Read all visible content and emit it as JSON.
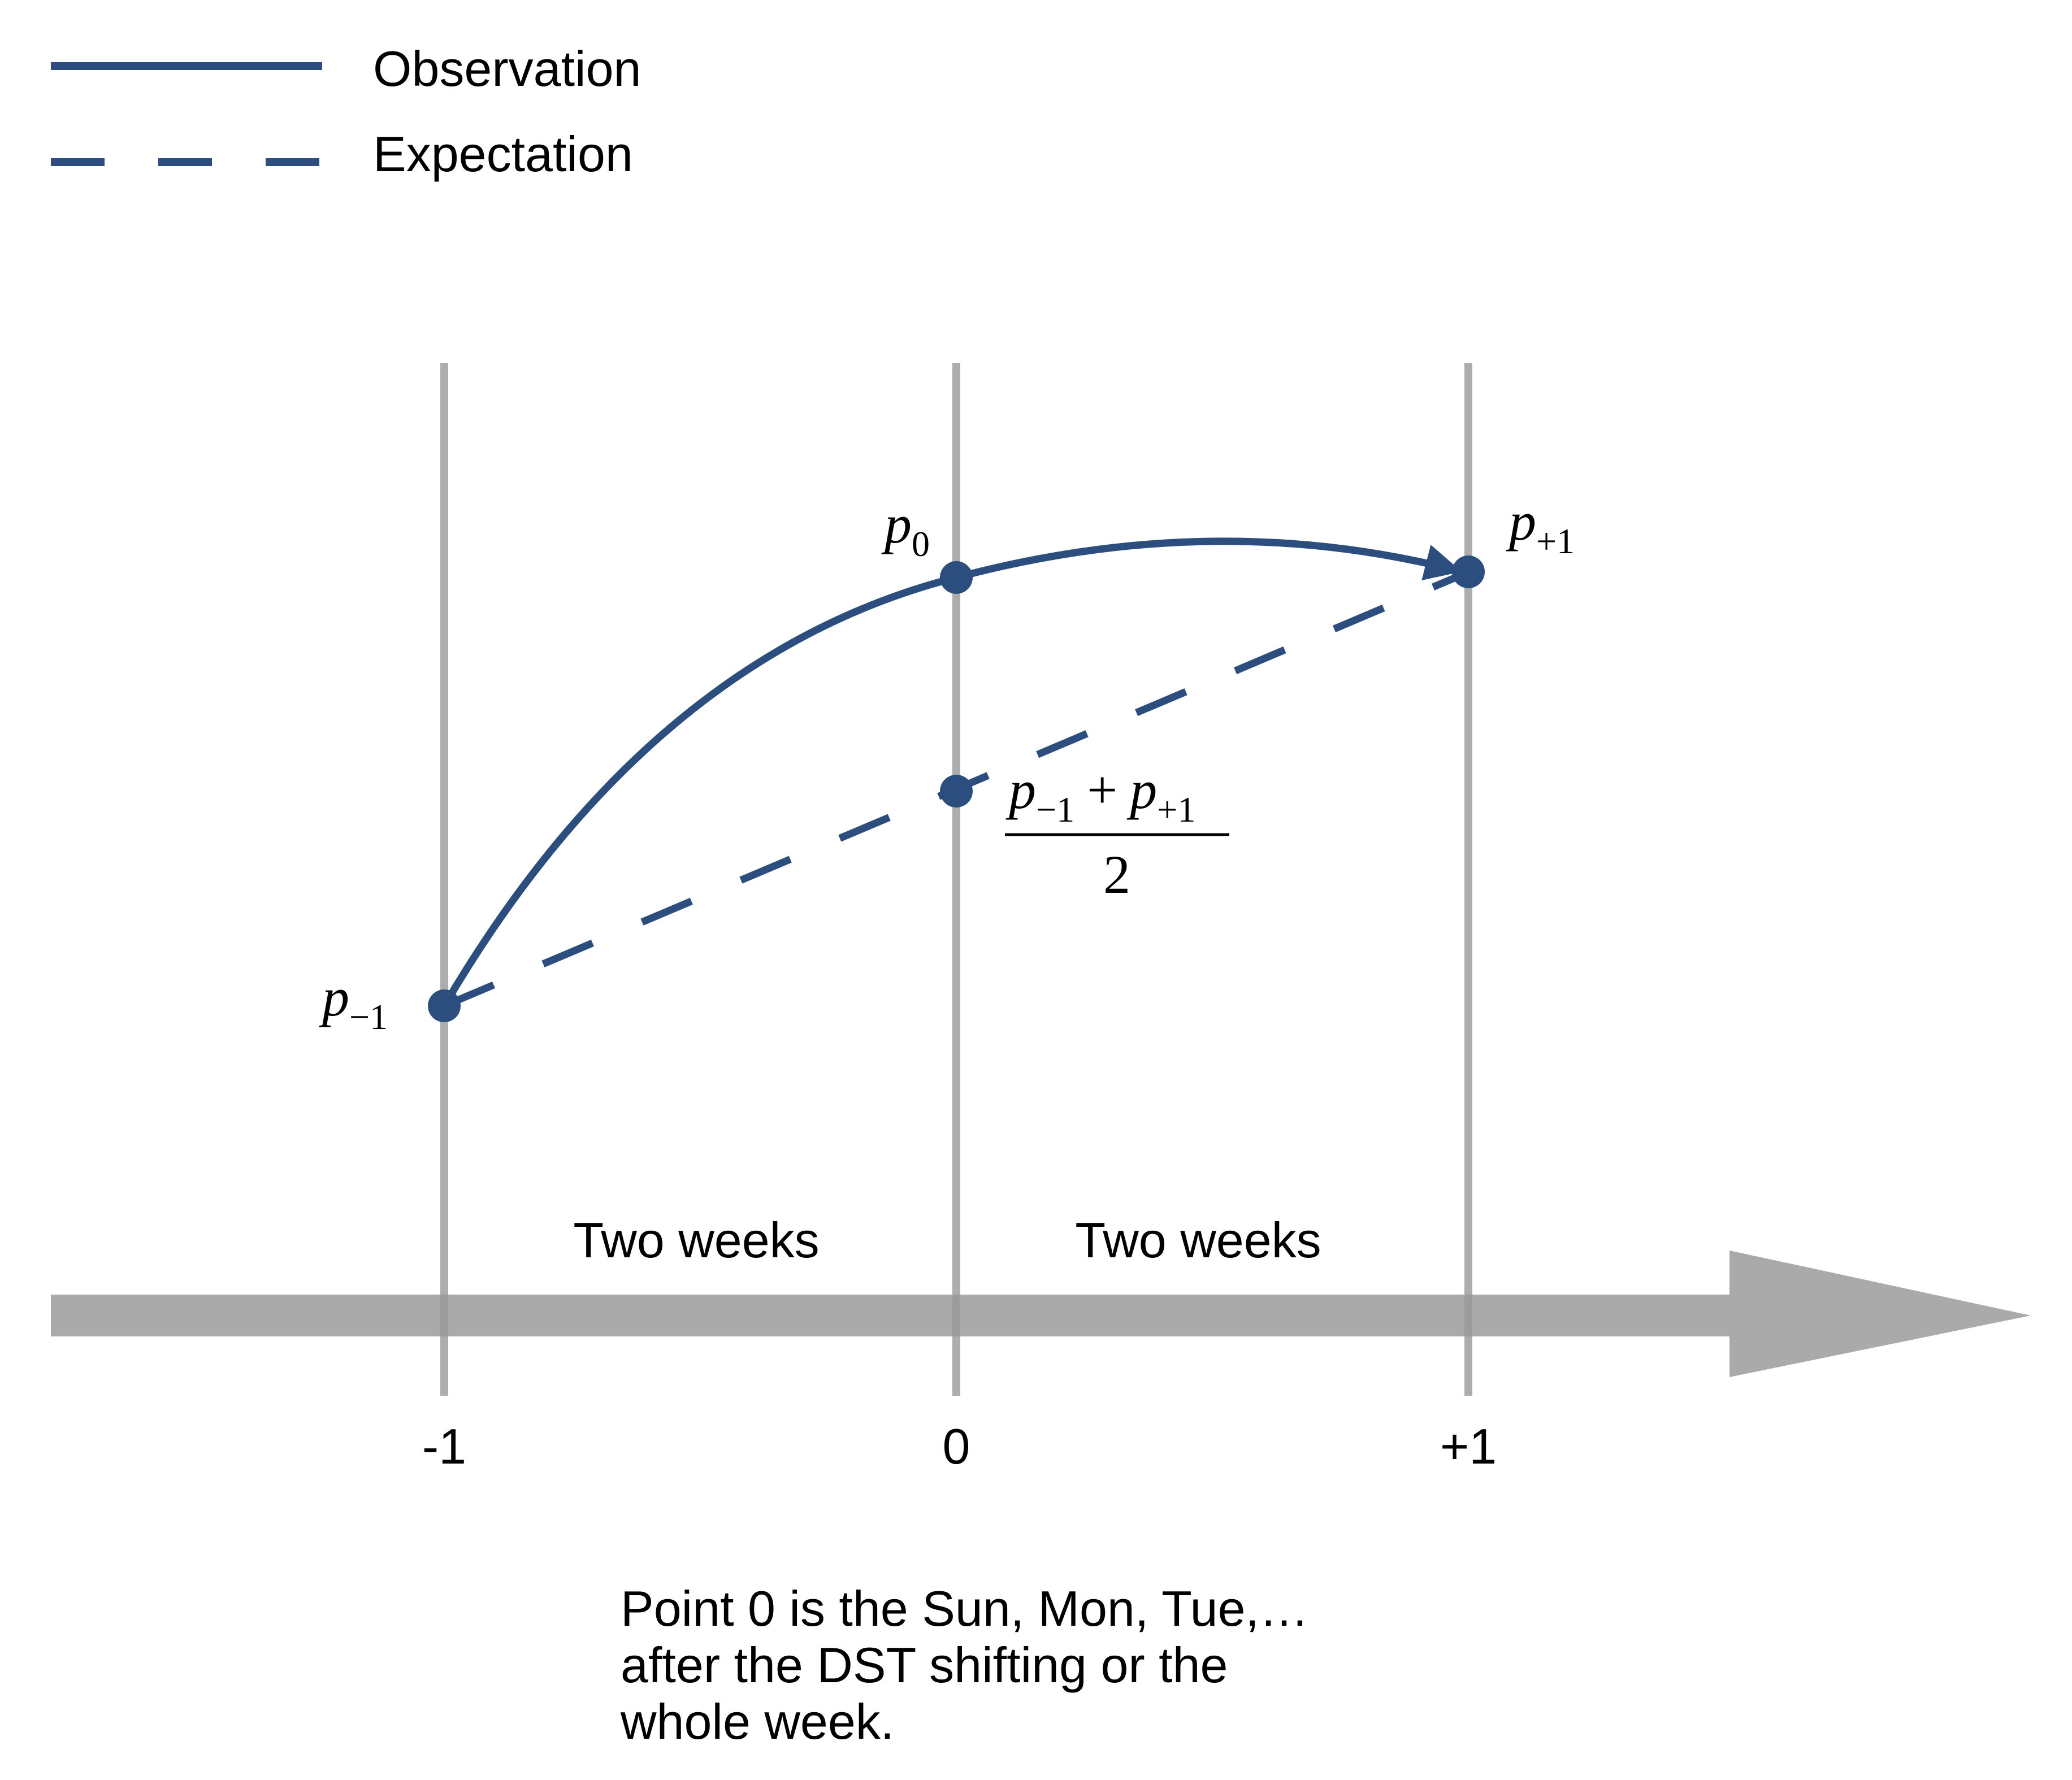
{
  "colors": {
    "series": "#2c4e7e",
    "guide": "#aaaaaa",
    "timeline": "#aaaaaa",
    "text": "#000000"
  },
  "legend": [
    {
      "label": "Observation",
      "style": "solid"
    },
    {
      "label": "Expectation",
      "style": "dashed"
    }
  ],
  "points": {
    "p_minus1": {
      "base": "p",
      "sub": "−1"
    },
    "p_0": {
      "base": "p",
      "sub": "0"
    },
    "p_plus1": {
      "base": "p",
      "sub": "+1"
    },
    "midpoint": {
      "num_left_base": "p",
      "num_left_sub": "−1",
      "num_op": "+",
      "num_right_base": "p",
      "num_right_sub": "+1",
      "denominator": "2"
    }
  },
  "intervals": [
    "Two weeks",
    "Two weeks"
  ],
  "ticks": [
    "-1",
    "0",
    "+1"
  ],
  "note": [
    "Point 0 is the Sun, Mon, Tue,…",
    "after the DST shifting or the",
    "whole week."
  ]
}
